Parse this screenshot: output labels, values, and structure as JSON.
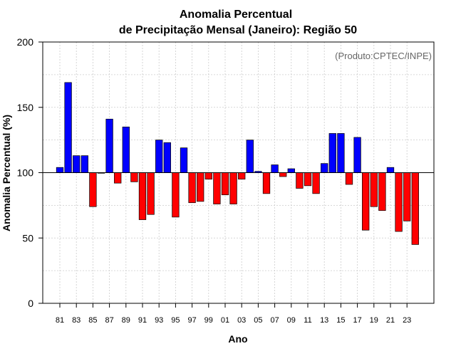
{
  "chart_data": {
    "type": "bar",
    "title_line1": "Anomalia Percentual",
    "title_line2": "de Precipitação Mensal (Janeiro): Região 50",
    "xlabel": "Ano",
    "ylabel": "Anomalia Percentual (%)",
    "annotation": "(Produto:CPTEC/INPE)",
    "baseline": 100,
    "ylim": [
      0,
      200
    ],
    "yticks": [
      0,
      50,
      100,
      150,
      200
    ],
    "colors": {
      "above": "#0000ff",
      "below": "#ff0000",
      "edge": "#000000",
      "grid": "#cccccc"
    },
    "categories": [
      "81",
      "82",
      "83",
      "84",
      "85",
      "86",
      "87",
      "88",
      "89",
      "90",
      "91",
      "92",
      "93",
      "94",
      "95",
      "96",
      "97",
      "98",
      "99",
      "00",
      "01",
      "02",
      "03",
      "04",
      "05",
      "06",
      "07",
      "08",
      "09",
      "10",
      "11",
      "12",
      "13",
      "14",
      "15",
      "16",
      "17",
      "18",
      "19",
      "20",
      "21",
      "22",
      "23",
      "24"
    ],
    "xtick_labels": [
      "81",
      "83",
      "85",
      "87",
      "89",
      "91",
      "93",
      "95",
      "97",
      "99",
      "01",
      "03",
      "05",
      "07",
      "09",
      "11",
      "13",
      "15",
      "17",
      "19",
      "21",
      "23"
    ],
    "values": [
      104,
      169,
      113,
      113,
      74,
      100,
      141,
      92,
      135,
      93,
      64,
      68,
      125,
      123,
      66,
      119,
      77,
      78,
      95,
      76,
      83,
      76,
      95,
      125,
      101,
      84,
      106,
      97,
      103,
      88,
      90,
      84,
      107,
      130,
      130,
      91,
      127,
      56,
      74,
      71,
      104,
      55,
      63,
      45
    ]
  }
}
